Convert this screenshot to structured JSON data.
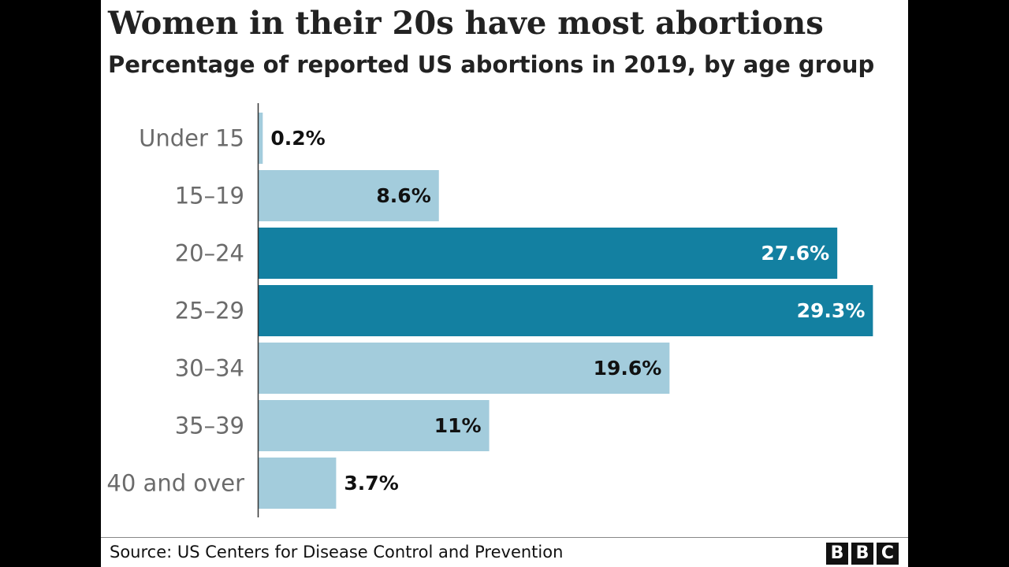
{
  "chart_data": {
    "type": "bar",
    "orientation": "horizontal",
    "title": "Women in their 20s have most abortions",
    "subtitle": "Percentage of reported US abortions in 2019, by age group",
    "categories": [
      "Under 15",
      "15–19",
      "20–24",
      "25–29",
      "30–34",
      "35–39",
      "40 and over"
    ],
    "values": [
      0.2,
      8.6,
      27.6,
      29.3,
      19.6,
      11,
      3.7
    ],
    "value_labels": [
      "0.2%",
      "8.6%",
      "27.6%",
      "29.3%",
      "19.6%",
      "11%",
      "3.7%"
    ],
    "highlighted": [
      false,
      false,
      true,
      true,
      false,
      false,
      false
    ],
    "xlim": [
      0,
      30
    ],
    "xlabel": "",
    "ylabel": "",
    "grid": false,
    "colors": {
      "highlight": "#1380a1",
      "default": "#a3ccdc",
      "label_on_highlight": "#ffffff",
      "label_default": "#111111"
    }
  },
  "source": "Source: US Centers for Disease Control and Prevention",
  "logo_letters": [
    "B",
    "B",
    "C"
  ]
}
